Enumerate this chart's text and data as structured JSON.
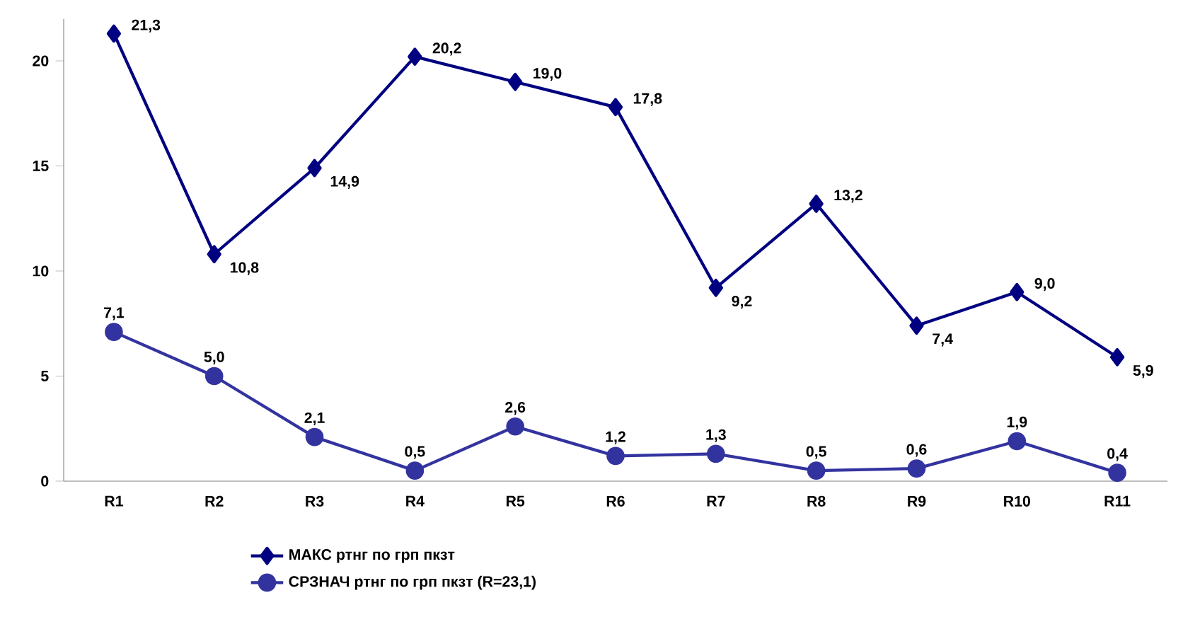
{
  "chart_data": {
    "type": "line",
    "categories": [
      "R1",
      "R2",
      "R3",
      "R4",
      "R5",
      "R6",
      "R7",
      "R8",
      "R9",
      "R10",
      "R11"
    ],
    "series": [
      {
        "name": "МАКС ртнг по грп пкзт",
        "color": "#000080",
        "marker": "diamond",
        "values": [
          21.3,
          10.8,
          14.9,
          20.2,
          19.0,
          17.8,
          9.2,
          13.2,
          7.4,
          9.0,
          5.9
        ],
        "value_labels": [
          "21,3",
          "10,8",
          "14,9",
          "20,2",
          "19,0",
          "17,8",
          "9,2",
          "13,2",
          "7,4",
          "9,0",
          "5,9"
        ]
      },
      {
        "name": "СРЗНАЧ ртнг по грп пкзт (R=23,1)",
        "color": "#3333a0",
        "marker": "circle",
        "values": [
          7.1,
          5.0,
          2.1,
          0.5,
          2.6,
          1.2,
          1.3,
          0.5,
          0.6,
          1.9,
          0.4
        ],
        "value_labels": [
          "7,1",
          "5,0",
          "2,1",
          "0,5",
          "2,6",
          "1,2",
          "1,3",
          "0,5",
          "0,6",
          "1,9",
          "0,4"
        ]
      }
    ],
    "ylim": [
      0,
      22
    ],
    "yticks": [
      0,
      5,
      10,
      15,
      20
    ],
    "grid": false,
    "legend": "bottom",
    "line_style": "solid"
  }
}
